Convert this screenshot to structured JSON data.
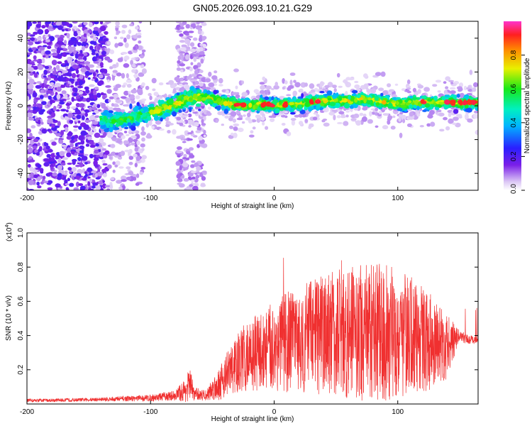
{
  "figure": {
    "title": "GN05.2026.093.10.21.G29"
  },
  "chart_data": [
    {
      "type": "heatmap",
      "xlabel": "Height of straight line (km)",
      "ylabel": "Frequency (Hz)",
      "xlim": [
        -200,
        165
      ],
      "ylim": [
        -50,
        50
      ],
      "xticks": [
        "-200",
        "-100",
        "0",
        "100"
      ],
      "yticks": [
        "-40",
        "-20",
        "0",
        "20",
        "40"
      ],
      "colorbar": {
        "label": "Normalized spectral amplitude",
        "range": [
          0,
          1
        ],
        "ticks": [
          "0.0",
          "0.2",
          "0.4",
          "0.6",
          "0.8"
        ]
      },
      "ridge": {
        "x": [
          -140,
          -130,
          -120,
          -110,
          -100,
          -90,
          -80,
          -70,
          -60,
          -50,
          -40,
          -30,
          -20,
          -10,
          0,
          10,
          20,
          30,
          40,
          50,
          60,
          70,
          80,
          90,
          100,
          110,
          120,
          130,
          140,
          150,
          160
        ],
        "y": [
          -8,
          -9,
          -8,
          -6,
          -4,
          -2,
          1,
          4,
          5,
          4,
          2,
          1,
          0,
          1,
          0,
          1,
          1,
          2,
          3,
          3,
          3,
          4,
          3,
          2,
          1,
          2,
          2,
          2,
          2,
          2,
          2
        ]
      }
    },
    {
      "type": "line",
      "xlabel": "Height of straight line (km)",
      "ylabel": "SNR (10 * v/v)",
      "yscale_label": "(x10",
      "yscale_exp": "4",
      "yscale_close": ")",
      "xlim": [
        -200,
        165
      ],
      "ylim": [
        0,
        1.0
      ],
      "xticks": [
        "-200",
        "-100",
        "0",
        "100"
      ],
      "yticks": [
        "0.2",
        "0.4",
        "0.6",
        "0.8",
        "1.0"
      ],
      "envelope": {
        "x": [
          -200,
          -150,
          -100,
          -80,
          -72,
          -68,
          -65,
          -55,
          -45,
          -35,
          -25,
          -15,
          -5,
          5,
          20,
          35,
          50,
          70,
          90,
          110,
          125,
          140,
          150,
          155,
          165
        ],
        "mean": [
          0.02,
          0.025,
          0.035,
          0.05,
          0.08,
          0.12,
          0.06,
          0.05,
          0.12,
          0.2,
          0.26,
          0.3,
          0.32,
          0.35,
          0.38,
          0.4,
          0.42,
          0.42,
          0.42,
          0.4,
          0.36,
          0.33,
          0.4,
          0.38,
          0.37
        ],
        "amp": [
          0.01,
          0.01,
          0.02,
          0.03,
          0.07,
          0.1,
          0.04,
          0.03,
          0.1,
          0.15,
          0.2,
          0.22,
          0.25,
          0.28,
          0.32,
          0.35,
          0.38,
          0.4,
          0.4,
          0.35,
          0.28,
          0.2,
          0.03,
          0.03,
          0.02
        ]
      }
    }
  ]
}
